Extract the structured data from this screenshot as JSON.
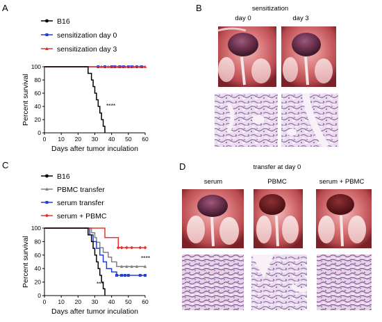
{
  "figure": {
    "panel_labels": [
      "A",
      "B",
      "C",
      "D"
    ]
  },
  "panel_a": {
    "legend": [
      "B16",
      "sensitization day 0",
      "sensitization day 3"
    ],
    "significance": "****"
  },
  "panel_b": {
    "title": "sensitization",
    "columns": [
      "day 0",
      "day 3"
    ]
  },
  "panel_c": {
    "legend": [
      "B16",
      "PBMC transfer",
      "serum transfer",
      "serum + PBMC"
    ],
    "significance_top": "****",
    "significance_bottom": "***"
  },
  "panel_d": {
    "title": "transfer at day 0",
    "columns": [
      "serum",
      "PBMC",
      "serum + PBMC"
    ]
  },
  "chart_data": [
    {
      "panel": "A",
      "type": "line",
      "xlabel": "Days after tumor inculation",
      "ylabel": "Percent survival",
      "xlim": [
        0,
        60
      ],
      "ylim": [
        0,
        100
      ],
      "xticks": [
        0,
        10,
        20,
        30,
        40,
        50,
        60
      ],
      "yticks": [
        0,
        20,
        40,
        60,
        80,
        100
      ],
      "series": [
        {
          "name": "B16",
          "color": "#000000",
          "step": true,
          "x": [
            0,
            26,
            28,
            29,
            30,
            31,
            32,
            33,
            34,
            35,
            36
          ],
          "y": [
            100,
            90,
            80,
            70,
            60,
            50,
            40,
            30,
            20,
            10,
            0
          ]
        },
        {
          "name": "sensitization day 0",
          "color": "#1f3fd6",
          "step": true,
          "x": [
            0,
            60
          ],
          "y": [
            100,
            100
          ],
          "censor_x": [
            32,
            36,
            40,
            42,
            45,
            47,
            50,
            52,
            55,
            58
          ]
        },
        {
          "name": "sensitization day 3",
          "color": "#e8312a",
          "step": true,
          "x": [
            0,
            60
          ],
          "y": [
            100,
            100
          ],
          "censor_x": [
            34,
            38,
            41,
            44,
            48,
            53,
            57,
            60
          ]
        }
      ]
    },
    {
      "panel": "C",
      "type": "line",
      "xlabel": "Days after tumor inculation",
      "ylabel": "Percent survival",
      "xlim": [
        0,
        60
      ],
      "ylim": [
        0,
        100
      ],
      "xticks": [
        0,
        10,
        20,
        30,
        40,
        50,
        60
      ],
      "yticks": [
        0,
        20,
        40,
        60,
        80,
        100
      ],
      "series": [
        {
          "name": "B16",
          "color": "#000000",
          "step": true,
          "x": [
            0,
            26,
            28,
            29,
            30,
            31,
            32,
            33,
            34,
            35,
            36
          ],
          "y": [
            100,
            90,
            80,
            70,
            60,
            50,
            40,
            30,
            20,
            10,
            0
          ]
        },
        {
          "name": "PBMC transfer",
          "color": "#808080",
          "step": true,
          "x": [
            0,
            28,
            30,
            31,
            33,
            35,
            38,
            40,
            43,
            46,
            60
          ],
          "y": [
            100,
            93,
            86,
            79,
            71,
            64,
            57,
            50,
            43,
            43,
            43
          ],
          "censor_x": [
            46,
            49,
            52,
            55,
            60
          ]
        },
        {
          "name": "serum transfer",
          "color": "#1f3fd6",
          "step": true,
          "x": [
            0,
            27,
            29,
            31,
            33,
            35,
            37,
            40,
            43,
            60
          ],
          "y": [
            100,
            90,
            80,
            70,
            60,
            50,
            40,
            35,
            30,
            30
          ],
          "censor_x": [
            43,
            46,
            48,
            50,
            57,
            60
          ]
        },
        {
          "name": "serum + PBMC",
          "color": "#e8312a",
          "step": true,
          "x": [
            0,
            36,
            44,
            60
          ],
          "y": [
            100,
            86,
            71,
            71
          ],
          "censor_x": [
            44,
            46,
            49,
            52,
            57,
            60
          ]
        }
      ]
    }
  ]
}
